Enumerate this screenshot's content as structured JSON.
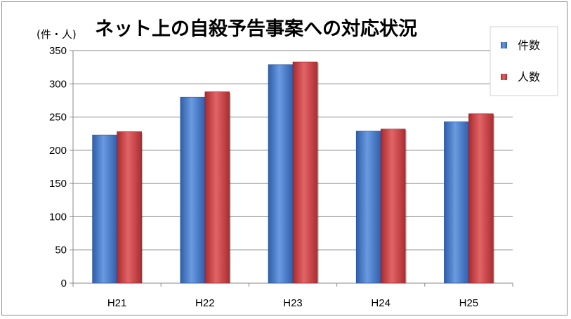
{
  "chart_data": {
    "type": "bar",
    "title": "ネット上の自殺予告事案への対応状況",
    "unit_label": "(件・人)",
    "categories": [
      "H21",
      "H22",
      "H23",
      "H24",
      "H25"
    ],
    "series": [
      {
        "name": "件数",
        "values": [
          223,
          280,
          329,
          229,
          243
        ],
        "color": "#3f75c9"
      },
      {
        "name": "人数",
        "values": [
          228,
          288,
          333,
          232,
          255
        ],
        "color": "#c8383a"
      }
    ],
    "ylim": [
      0,
      350
    ],
    "yticks": [
      0,
      50,
      100,
      150,
      200,
      250,
      300,
      350
    ],
    "grid": true,
    "legend_position": "top-right"
  }
}
